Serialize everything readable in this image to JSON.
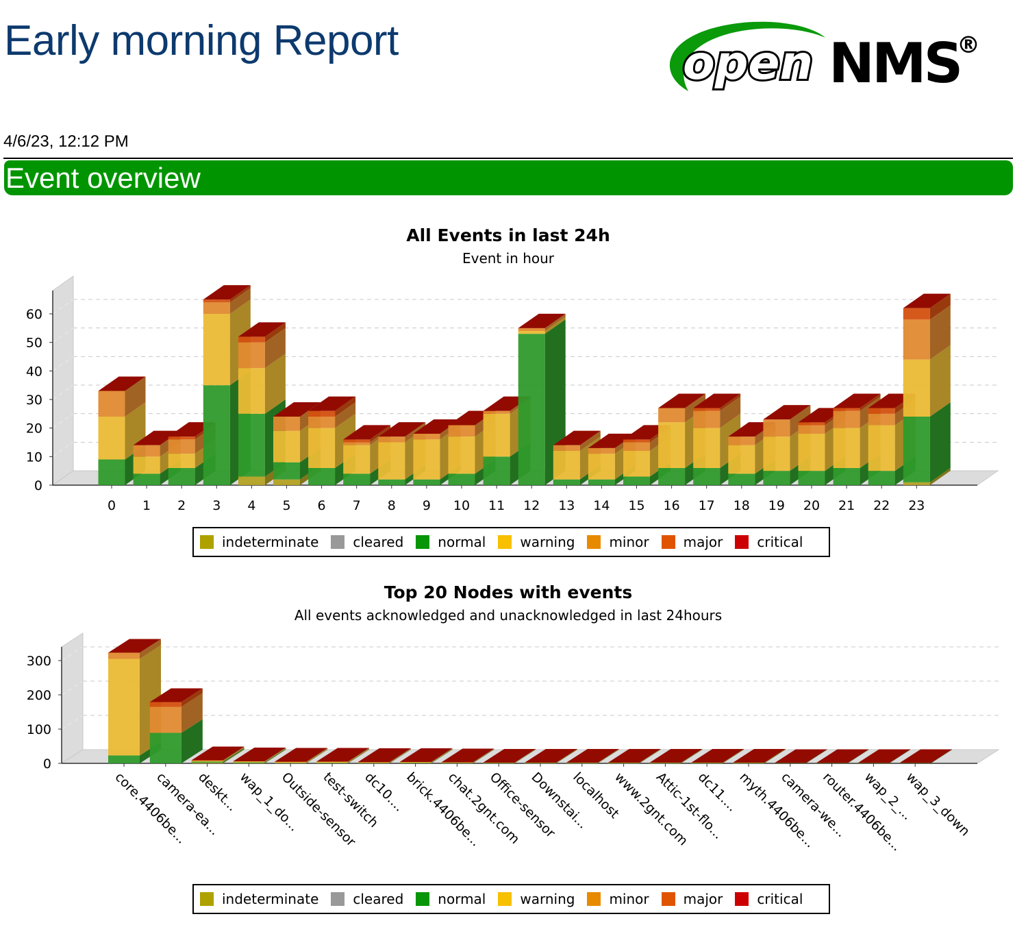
{
  "header": {
    "title": "Early morning Report",
    "date": "4/6/23, 12:12 PM",
    "logo_text": "openNMS",
    "section": "Event overview"
  },
  "colors": {
    "indeterminate": "#aea100",
    "cleared": "#999999",
    "normal": "#079607",
    "warning": "#f7c000",
    "minor": "#e88a00",
    "major": "#e05400",
    "critical": "#cc0000",
    "section_bg": "#009500",
    "title": "#0d3a6e"
  },
  "legend": [
    "indeterminate",
    "cleared",
    "normal",
    "warning",
    "minor",
    "major",
    "critical"
  ],
  "chart_data": [
    {
      "type": "bar",
      "stacked": true,
      "style": "3d",
      "title": "All Events in last 24h",
      "subtitle": "Event in hour",
      "ylim": [
        0,
        65
      ],
      "yticks": [
        0,
        10,
        20,
        30,
        40,
        50,
        60
      ],
      "grid": true,
      "legend": "bottom",
      "categories": [
        "0",
        "1",
        "2",
        "3",
        "4",
        "5",
        "6",
        "7",
        "8",
        "9",
        "10",
        "11",
        "12",
        "13",
        "14",
        "15",
        "16",
        "17",
        "18",
        "19",
        "20",
        "21",
        "22",
        "23"
      ],
      "series": [
        {
          "name": "indeterminate",
          "values": [
            0,
            0,
            0,
            0,
            3,
            2,
            0,
            0,
            0,
            0,
            0,
            0,
            0,
            0,
            0,
            0,
            0,
            0,
            0,
            0,
            0,
            0,
            0,
            1
          ]
        },
        {
          "name": "cleared",
          "values": [
            0,
            0,
            0,
            0,
            0,
            0,
            0,
            0,
            0,
            0,
            0,
            0,
            0,
            0,
            0,
            0,
            0,
            0,
            0,
            0,
            0,
            0,
            0,
            0
          ]
        },
        {
          "name": "normal",
          "values": [
            9,
            4,
            6,
            35,
            22,
            6,
            6,
            4,
            2,
            2,
            4,
            10,
            53,
            2,
            2,
            3,
            6,
            6,
            4,
            5,
            5,
            6,
            5,
            23
          ]
        },
        {
          "name": "warning",
          "values": [
            15,
            6,
            5,
            25,
            16,
            11,
            14,
            10,
            13,
            14,
            13,
            15,
            1,
            10,
            9,
            9,
            16,
            14,
            10,
            12,
            13,
            14,
            16,
            20
          ]
        },
        {
          "name": "minor",
          "values": [
            9,
            4,
            5,
            4,
            9,
            5,
            4,
            1,
            2,
            2,
            4,
            1,
            1,
            2,
            2,
            3,
            5,
            6,
            3,
            6,
            3,
            6,
            4,
            14
          ]
        },
        {
          "name": "major",
          "values": [
            0,
            0,
            1,
            1,
            2,
            0,
            2,
            1,
            0,
            0,
            0,
            0,
            0,
            0,
            0,
            1,
            0,
            1,
            0,
            0,
            1,
            1,
            2,
            4
          ]
        },
        {
          "name": "critical",
          "values": [
            0,
            0,
            0,
            0,
            0,
            0,
            0,
            0,
            0,
            0,
            0,
            0,
            0,
            0,
            0,
            0,
            0,
            0,
            0,
            0,
            0,
            0,
            0,
            0
          ]
        }
      ]
    },
    {
      "type": "bar",
      "stacked": true,
      "style": "3d",
      "title": "Top 20 Nodes with events",
      "subtitle": "All events acknowledged and unacknowledged in last 24hours",
      "ylim": [
        0,
        340
      ],
      "yticks": [
        0,
        100,
        200,
        300
      ],
      "grid": true,
      "legend": "bottom",
      "categories": [
        "core.4406be...",
        "camera-ea...",
        "deskt...",
        "wap_1_do...",
        "Outside-sensor",
        "test-switch",
        "dc10....",
        "brick.4406be...",
        "chat.2gnt.com",
        "Office-sensor",
        "Downstai...",
        "localhost",
        "www.2gnt.com",
        "Attic-1st-flo...",
        "dc11....",
        "myth.4406be...",
        "camera-we...",
        "router.4406be...",
        "wap_2_...",
        "wap_3_down"
      ],
      "series": [
        {
          "name": "indeterminate",
          "values": [
            0,
            0,
            2,
            1,
            0,
            1,
            0,
            1,
            0,
            0,
            0,
            0,
            0,
            0,
            0,
            0,
            0,
            0,
            0,
            0
          ]
        },
        {
          "name": "cleared",
          "values": [
            0,
            0,
            0,
            0,
            0,
            0,
            0,
            0,
            0,
            0,
            0,
            0,
            0,
            0,
            0,
            0,
            0,
            0,
            0,
            0
          ]
        },
        {
          "name": "normal",
          "values": [
            23,
            89,
            3,
            2,
            1,
            1,
            1,
            1,
            1,
            1,
            1,
            1,
            1,
            1,
            1,
            1,
            1,
            1,
            1,
            1
          ]
        },
        {
          "name": "warning",
          "values": [
            282,
            0,
            2,
            2,
            2,
            2,
            1,
            1,
            1,
            1,
            1,
            1,
            1,
            1,
            1,
            1,
            0,
            0,
            0,
            0
          ]
        },
        {
          "name": "minor",
          "values": [
            18,
            76,
            1,
            1,
            1,
            1,
            1,
            1,
            1,
            0,
            0,
            0,
            0,
            0,
            0,
            0,
            0,
            0,
            0,
            0
          ]
        },
        {
          "name": "major",
          "values": [
            0,
            14,
            1,
            0,
            1,
            0,
            1,
            0,
            0,
            0,
            0,
            0,
            0,
            0,
            0,
            0,
            0,
            0,
            0,
            0
          ]
        },
        {
          "name": "critical",
          "values": [
            0,
            0,
            0,
            0,
            0,
            0,
            0,
            0,
            0,
            0,
            0,
            0,
            0,
            0,
            0,
            0,
            0,
            0,
            0,
            0
          ]
        }
      ]
    }
  ]
}
